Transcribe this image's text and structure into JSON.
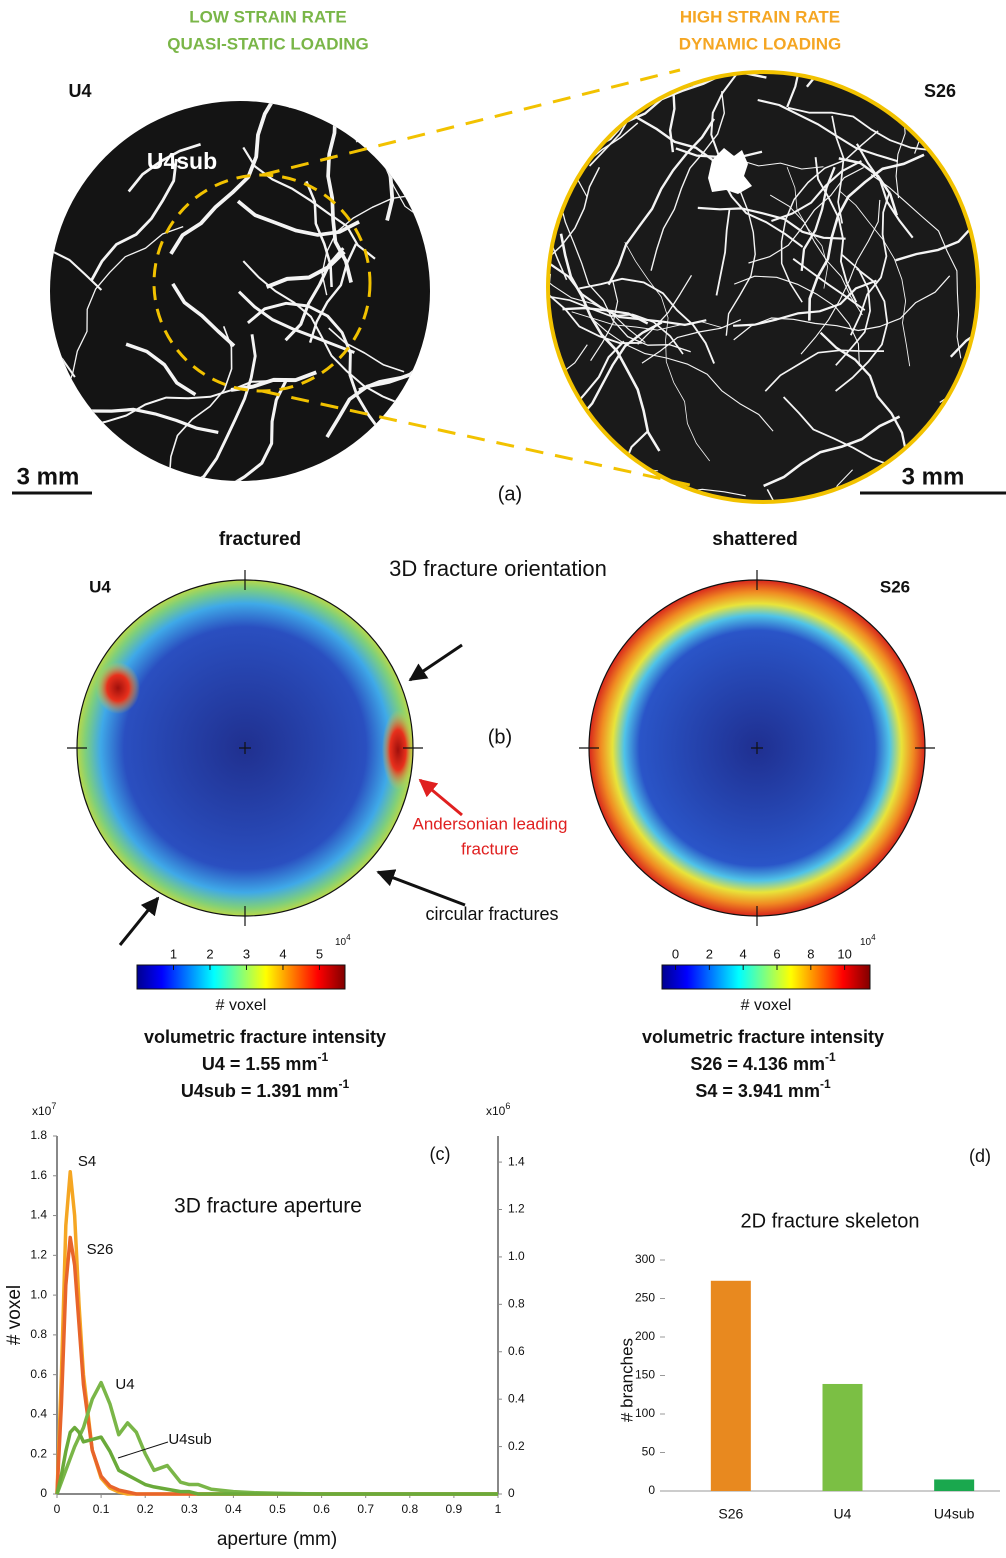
{
  "panel_a": {
    "label": "(a)",
    "left_heading": [
      "LOW STRAIN RATE",
      "QUASI-STATIC LOADING"
    ],
    "right_heading": [
      "HIGH STRAIN RATE",
      "DYNAMIC LOADING"
    ],
    "left_sample": "U4",
    "subvolume": "U4sub",
    "right_sample": "S26",
    "left_scale": "3 mm",
    "right_scale": "3 mm"
  },
  "panel_b": {
    "label": "(b)",
    "title": "3D fracture orientation",
    "left_heading": "fractured",
    "right_heading": "shattered",
    "left_sample": "U4",
    "right_sample": "S26",
    "leading_fracture": [
      "Andersonian leading",
      "fracture"
    ],
    "circular": "circular fractures",
    "colorbars": [
      {
        "multiplier": {
          "base": "10",
          "exp": "4"
        },
        "lim": [
          0,
          5.7
        ],
        "ticks": [
          1,
          2,
          3,
          4,
          5
        ],
        "label": "# voxel"
      },
      {
        "multiplier": {
          "base": "10",
          "exp": "4"
        },
        "lim": [
          -0.8,
          11.5
        ],
        "ticks": [
          0,
          2,
          4,
          6,
          8,
          10
        ],
        "label": "# voxel"
      }
    ],
    "intensity": [
      {
        "title": "volumetric fracture intensity",
        "lines": [
          {
            "text": "U4 = 1.55 mm",
            "sup": "-1"
          },
          {
            "text": "U4sub = 1.391 mm",
            "sup": "-1"
          }
        ]
      },
      {
        "title": "volumetric fracture intensity",
        "lines": [
          {
            "text": "S26 = 4.136 mm",
            "sup": "-1"
          },
          {
            "text": "S4 = 3.941 mm",
            "sup": "-1"
          }
        ]
      }
    ]
  },
  "chart_data": [
    {
      "type": "line",
      "panel": "(c)",
      "title": "3D fracture aperture",
      "x_label": "aperture (mm)",
      "y_label": "# voxel",
      "y_multiplier": {
        "base": "x10",
        "exp": "7"
      },
      "y2_multiplier": {
        "base": "x10",
        "exp": "6"
      },
      "x": [
        0,
        0.01,
        0.02,
        0.03,
        0.04,
        0.05,
        0.06,
        0.08,
        0.1,
        0.12,
        0.14,
        0.16,
        0.18,
        0.2,
        0.22,
        0.25,
        0.28,
        0.3,
        0.32,
        0.35,
        0.4,
        0.45,
        0.5,
        0.6,
        0.7,
        0.8,
        0.9,
        1
      ],
      "xlim": [
        0,
        1
      ],
      "xticks": [
        0,
        0.1,
        0.2,
        0.3,
        0.4,
        0.5,
        0.6,
        0.7,
        0.8,
        0.9,
        1
      ],
      "ylim": [
        0,
        1.8
      ],
      "yticks": [
        0,
        0.2,
        0.4,
        0.6,
        0.8,
        {
          "value": 1,
          "label": "1.0"
        },
        1.2,
        1.4,
        1.6,
        1.8
      ],
      "y2lim": [
        0,
        1.51
      ],
      "y2ticks": [
        0,
        0.2,
        0.4,
        0.6,
        0.8,
        {
          "value": 1,
          "label": "1.0"
        },
        1.2,
        1.4
      ],
      "series": [
        {
          "name": "S4",
          "color": "#f5a623",
          "values": [
            0,
            0.6,
            1.35,
            1.62,
            1.4,
            0.95,
            0.6,
            0.22,
            0.08,
            0.03,
            0.01,
            0,
            0,
            0,
            0,
            0,
            0,
            0,
            0,
            0,
            0,
            0,
            0,
            0,
            0,
            0,
            0,
            0
          ]
        },
        {
          "name": "S26",
          "color": "#e8642a",
          "values": [
            0,
            0.45,
            1.05,
            1.29,
            1.15,
            0.85,
            0.55,
            0.22,
            0.09,
            0.04,
            0.02,
            0.01,
            0,
            0,
            0,
            0,
            0,
            0,
            0,
            0,
            0,
            0,
            0,
            0,
            0,
            0,
            0,
            0
          ]
        },
        {
          "name": "U4",
          "color": "#7ab648",
          "axis": "y2",
          "values": [
            0,
            0.05,
            0.1,
            0.15,
            0.2,
            0.24,
            0.28,
            0.4,
            0.47,
            0.38,
            0.25,
            0.3,
            0.26,
            0.17,
            0.1,
            0.12,
            0.05,
            0.04,
            0.04,
            0.02,
            0.01,
            0.005,
            0.003,
            0,
            0,
            0,
            0,
            0
          ]
        },
        {
          "name": "U4sub",
          "color": "#6aaa3a",
          "axis": "y2",
          "values": [
            0,
            0.08,
            0.18,
            0.26,
            0.28,
            0.26,
            0.22,
            0.23,
            0.24,
            0.18,
            0.1,
            0.08,
            0.06,
            0.04,
            0.03,
            0.02,
            0.01,
            0.01,
            0,
            0,
            0,
            0,
            0,
            0,
            0,
            0,
            0,
            0
          ]
        }
      ]
    },
    {
      "type": "bar",
      "panel": "(d)",
      "title": "2D fracture skeleton",
      "y_label": "# branches",
      "categories": [
        "S26",
        "U4",
        "U4sub"
      ],
      "values": [
        273,
        139,
        15
      ],
      "colors": [
        "#e8891f",
        "#7bbf44",
        "#1aa84e"
      ],
      "ylim": [
        0,
        300
      ],
      "yticks": [
        0,
        50,
        100,
        150,
        200,
        250,
        300
      ]
    }
  ]
}
